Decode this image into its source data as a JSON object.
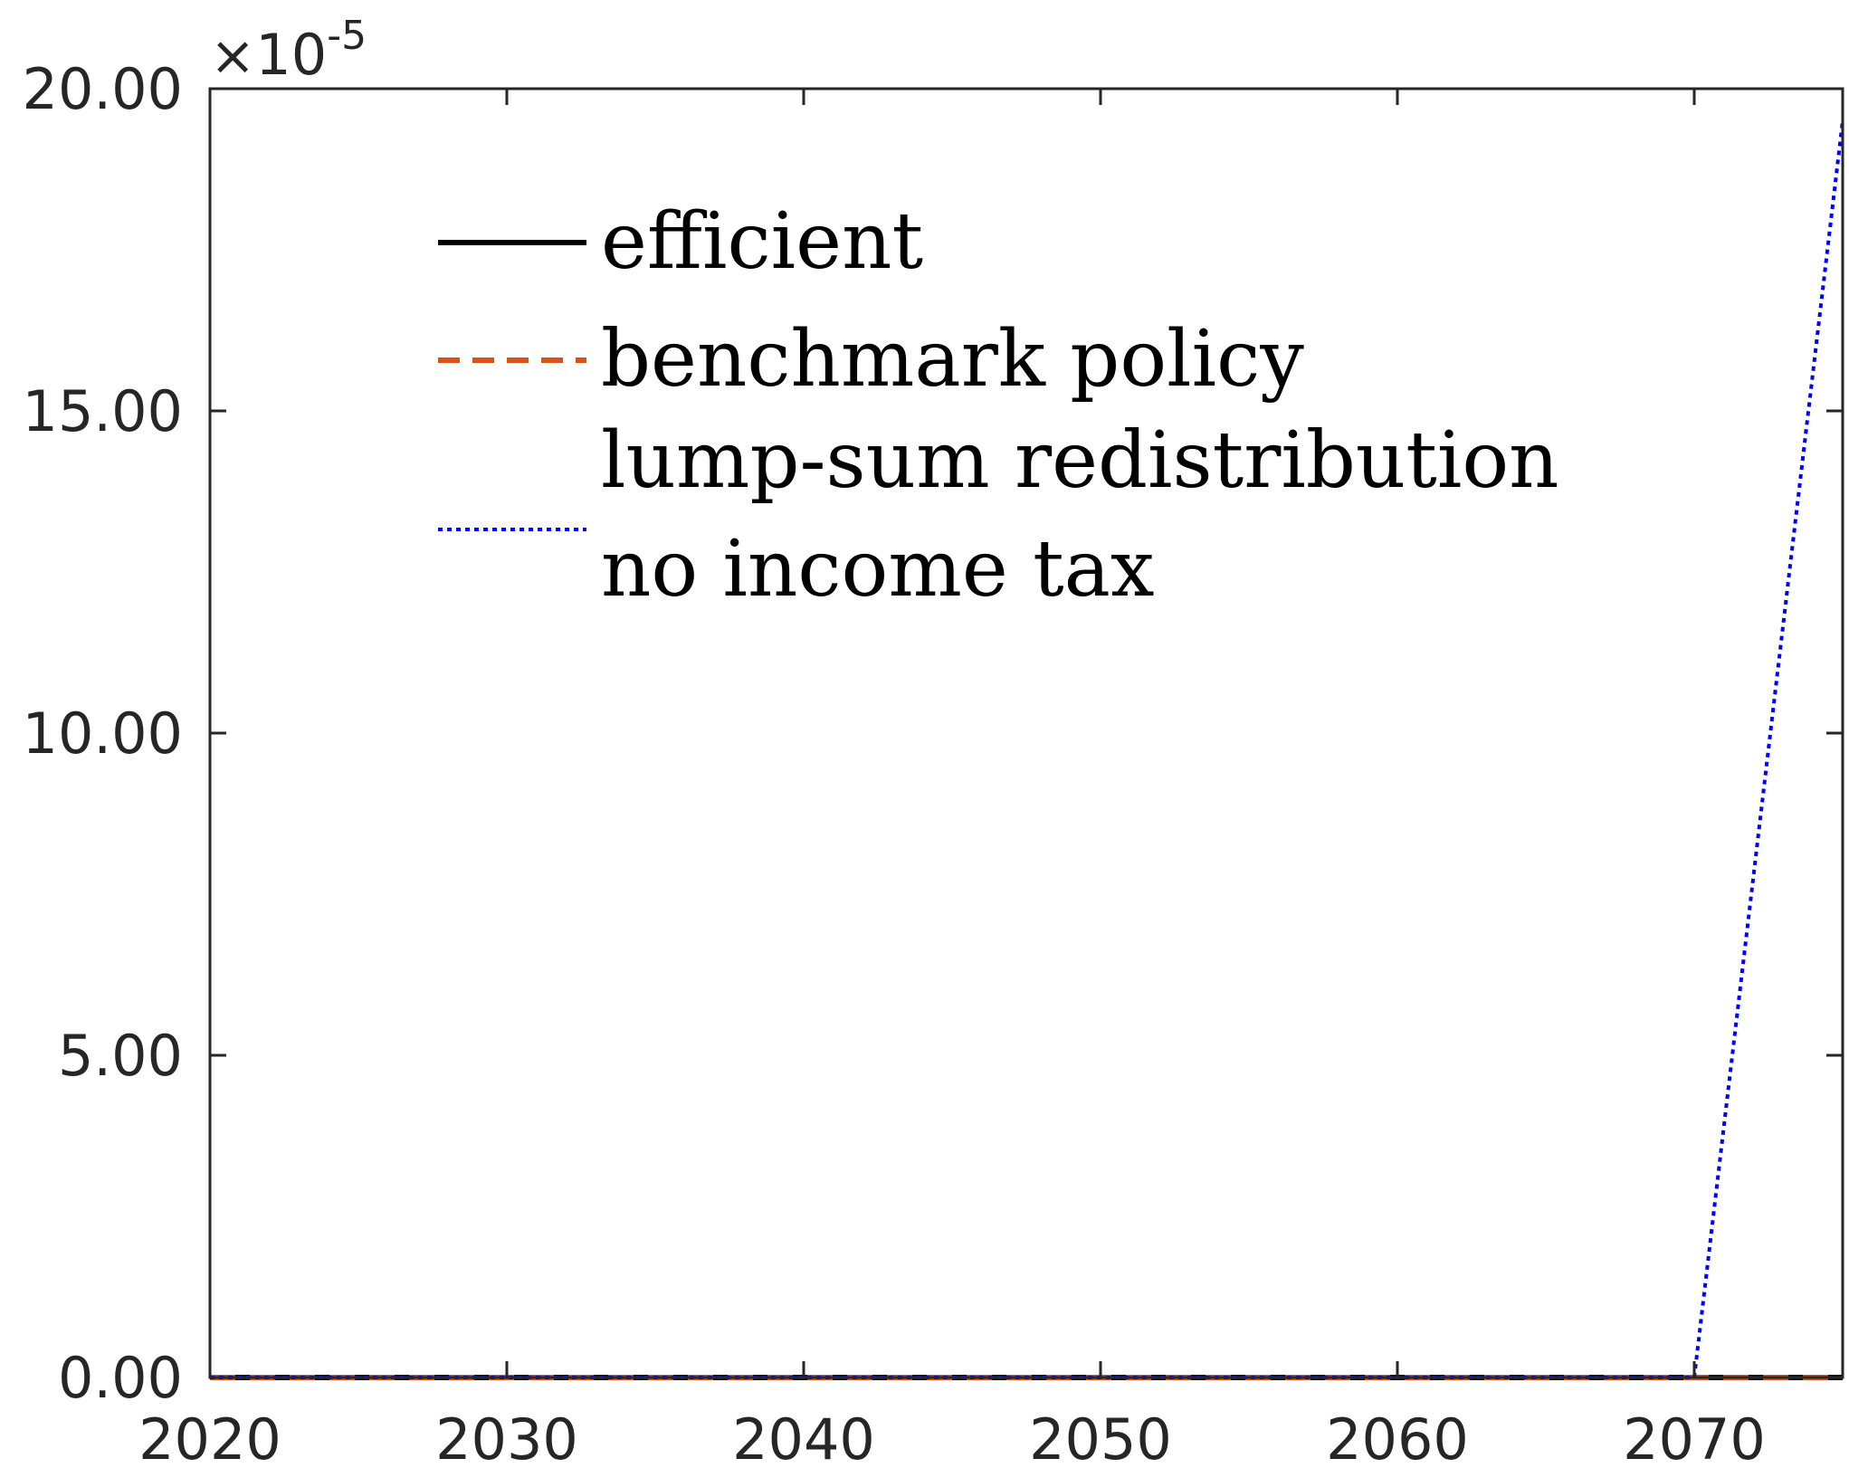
{
  "chart_data": {
    "type": "line",
    "x_ticks": [
      "2020",
      "2030",
      "2040",
      "2050",
      "2060",
      "2070"
    ],
    "y_ticks": [
      "0.00",
      "5.00",
      "10.00",
      "15.00",
      "20.00"
    ],
    "y_exponent": {
      "base": "10",
      "power": "-5",
      "times": "×"
    },
    "xlim": [
      2020,
      2075
    ],
    "ylim": [
      0,
      20
    ],
    "grid": false,
    "legend_position": "top-left",
    "series": [
      {
        "name": "efficient",
        "color": "#000000",
        "style": "solid",
        "x": [
          2020,
          2025,
          2030,
          2035,
          2040,
          2045,
          2050,
          2055,
          2060,
          2065,
          2070,
          2075
        ],
        "y": [
          0,
          0,
          0,
          0,
          0,
          0,
          0,
          0,
          0,
          0,
          0,
          0
        ]
      },
      {
        "name": "benchmark policy",
        "color": "#D95319",
        "style": "dashed",
        "x": [
          2020,
          2025,
          2030,
          2035,
          2040,
          2045,
          2050,
          2055,
          2060,
          2065,
          2070,
          2075
        ],
        "y": [
          0,
          0,
          0,
          0,
          0,
          0,
          0,
          0,
          0,
          0,
          0,
          0
        ]
      },
      {
        "name": "lump-sum redistribution",
        "color": "#000000",
        "style": "none",
        "x": [
          2020,
          2075
        ],
        "y": [
          0,
          0
        ]
      },
      {
        "name": "no income tax",
        "color": "#0000FF",
        "style": "dotted",
        "x": [
          2020,
          2025,
          2030,
          2035,
          2040,
          2045,
          2050,
          2055,
          2060,
          2065,
          2070,
          2075
        ],
        "y": [
          0,
          0,
          0,
          0,
          0,
          0,
          0,
          0,
          0,
          0,
          0,
          19.5
        ]
      }
    ]
  }
}
